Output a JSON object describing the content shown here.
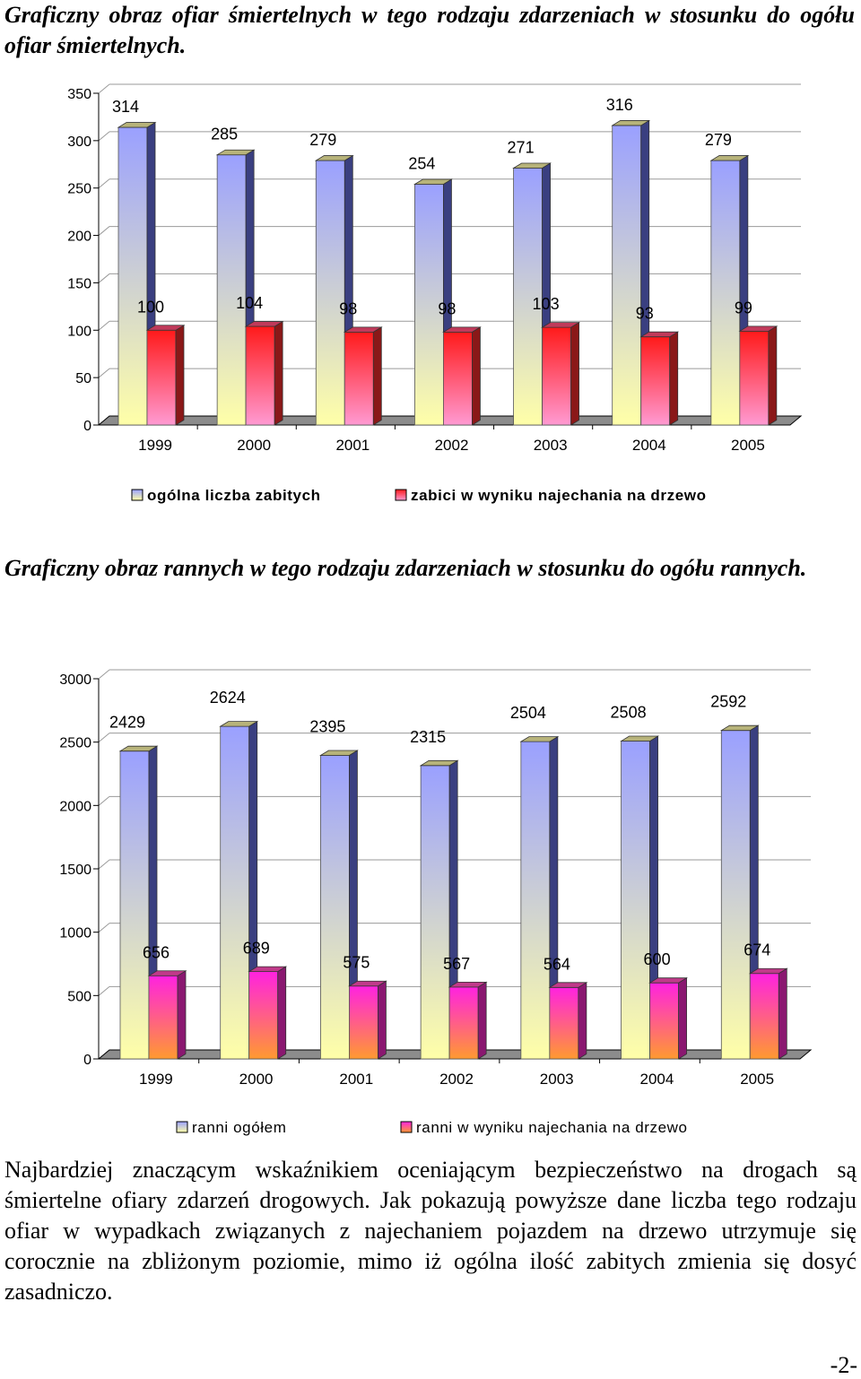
{
  "headings": {
    "h1": "Graficzny obraz ofiar śmiertelnych w tego rodzaju zdarzeniach w stosunku do ogółu ofiar śmiertelnych.",
    "h2": "Graficzny obraz rannych w tego rodzaju zdarzeniach w stosunku do ogółu rannych."
  },
  "chart_data": [
    {
      "type": "bar",
      "categories": [
        "1999",
        "2000",
        "2001",
        "2002",
        "2003",
        "2004",
        "2005"
      ],
      "series": [
        {
          "name": "ogólna liczba zabitych",
          "values": [
            314,
            285,
            279,
            254,
            271,
            316,
            279
          ]
        },
        {
          "name": "zabici w wyniku najechania na drzewo",
          "values": [
            100,
            104,
            98,
            98,
            103,
            93,
            99
          ]
        }
      ],
      "ylim": [
        0,
        350
      ],
      "yticks": [
        "0",
        "50",
        "100",
        "150",
        "200",
        "250",
        "300",
        "350"
      ],
      "grid": true,
      "legend": "bottom",
      "style": "3d-column",
      "colors": {
        "series1_top": "#9aa0ff",
        "series1_bottom": "#ffffa8",
        "series2_top": "#ff1a1a",
        "series2_bottom": "#ff9ad2"
      }
    },
    {
      "type": "bar",
      "categories": [
        "1999",
        "2000",
        "2001",
        "2002",
        "2003",
        "2004",
        "2005"
      ],
      "series": [
        {
          "name": "ranni ogółem",
          "values": [
            2429,
            2624,
            2395,
            2315,
            2504,
            2508,
            2592
          ]
        },
        {
          "name": "ranni w wyniku najechania na drzewo",
          "values": [
            656,
            689,
            575,
            567,
            564,
            600,
            674
          ]
        }
      ],
      "ylim": [
        0,
        3000
      ],
      "yticks": [
        "0",
        "500",
        "1000",
        "1500",
        "2000",
        "2500",
        "3000"
      ],
      "grid": true,
      "legend": "bottom",
      "style": "3d-column",
      "colors": {
        "series1_top": "#9aa0ff",
        "series1_bottom": "#ffffa8",
        "series2_top": "#ff22e0",
        "series2_bottom": "#ff9a30"
      }
    }
  ],
  "paragraph": "Najbardziej znaczącym wskaźnikiem oceniającym bezpieczeństwo na drogach są śmiertelne ofiary zdarzeń drogowych. Jak pokazują powyższe dane liczba tego rodzaju ofiar w wypadkach związanych z najechaniem pojazdem na drzewo utrzymuje się corocznie na zbliżonym poziomie, mimo iż ogólna ilość zabitych zmienia się dosyć zasadniczo.",
  "page_number": "-2-"
}
